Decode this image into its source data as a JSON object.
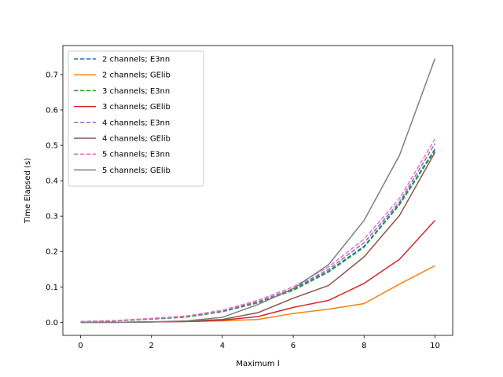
{
  "chart_data": {
    "type": "line",
    "title": "",
    "xlabel": "Maximum l",
    "ylabel": "Time Elapsed (s)",
    "xlim": [
      -0.5,
      10.5
    ],
    "ylim": [
      -0.037,
      0.782
    ],
    "xticks": [
      0,
      2,
      4,
      6,
      8,
      10
    ],
    "xtick_labels": [
      "0",
      "2",
      "4",
      "6",
      "8",
      "10"
    ],
    "yticks": [
      0.0,
      0.1,
      0.2,
      0.3,
      0.4,
      0.5,
      0.6,
      0.7
    ],
    "ytick_labels": [
      "0.0",
      "0.1",
      "0.2",
      "0.3",
      "0.4",
      "0.5",
      "0.6",
      "0.7"
    ],
    "grid": false,
    "legend_position": "top-left",
    "x": [
      0,
      1,
      2,
      3,
      4,
      5,
      6,
      7,
      8,
      9,
      10
    ],
    "series": [
      {
        "name": "2 channels; E3nn",
        "style": "dashed",
        "color": "#1f77b4",
        "values": [
          0.002,
          0.004,
          0.009,
          0.015,
          0.03,
          0.055,
          0.092,
          0.145,
          0.215,
          0.335,
          0.49
        ]
      },
      {
        "name": "2 channels; GElib",
        "style": "solid",
        "color": "#ff7f0e",
        "values": [
          0.0,
          0.0,
          0.001,
          0.002,
          0.004,
          0.008,
          0.025,
          0.037,
          0.053,
          0.108,
          0.16
        ]
      },
      {
        "name": "3 channels; E3nn",
        "style": "dashed",
        "color": "#2ca02c",
        "values": [
          0.002,
          0.004,
          0.009,
          0.015,
          0.03,
          0.055,
          0.09,
          0.142,
          0.212,
          0.332,
          0.485
        ]
      },
      {
        "name": "3 channels; GElib",
        "style": "solid",
        "color": "#d62728",
        "values": [
          0.0,
          0.0,
          0.001,
          0.002,
          0.006,
          0.016,
          0.042,
          0.062,
          0.11,
          0.178,
          0.288
        ]
      },
      {
        "name": "4 channels; E3nn",
        "style": "dashed",
        "color": "#9467bd",
        "values": [
          0.002,
          0.005,
          0.01,
          0.017,
          0.032,
          0.058,
          0.095,
          0.15,
          0.225,
          0.34,
          0.505
        ]
      },
      {
        "name": "4 channels; GElib",
        "style": "solid",
        "color": "#8c564b",
        "values": [
          0.0,
          0.0,
          0.001,
          0.003,
          0.008,
          0.027,
          0.068,
          0.104,
          0.185,
          0.302,
          0.48
        ]
      },
      {
        "name": "5 channels; E3nn",
        "style": "dashed",
        "color": "#e377c2",
        "values": [
          0.002,
          0.005,
          0.011,
          0.018,
          0.034,
          0.062,
          0.1,
          0.157,
          0.235,
          0.35,
          0.518
        ]
      },
      {
        "name": "5 channels; GElib",
        "style": "solid",
        "color": "#7f7f7f",
        "values": [
          0.0,
          0.0,
          0.001,
          0.004,
          0.014,
          0.05,
          0.095,
          0.163,
          0.288,
          0.472,
          0.745
        ]
      }
    ]
  }
}
